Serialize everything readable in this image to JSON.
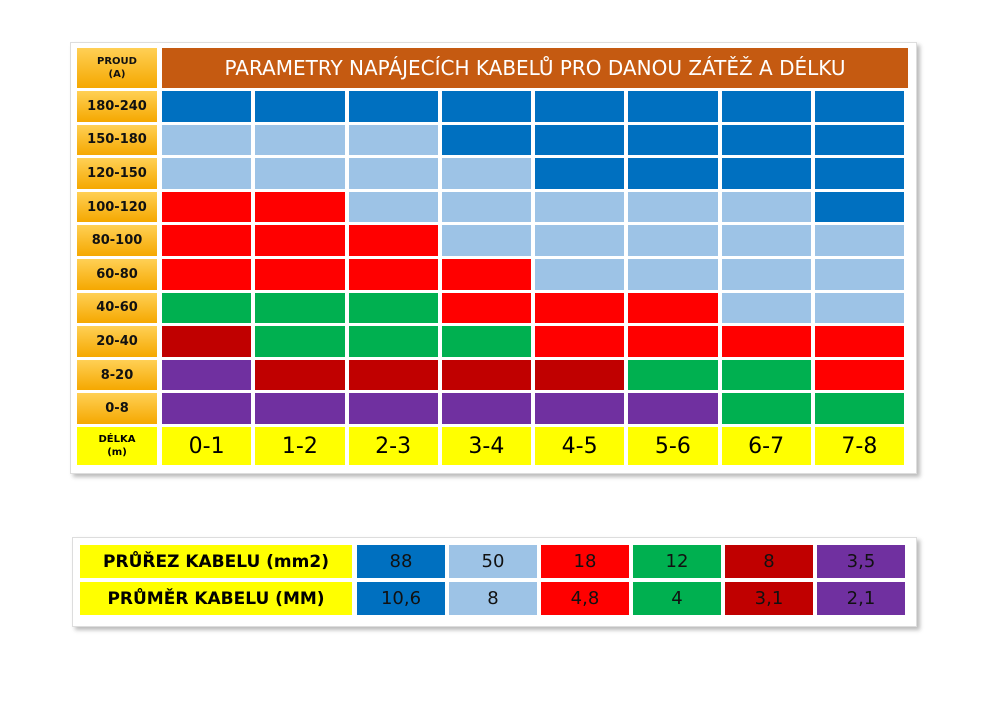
{
  "main_table": {
    "corner": {
      "line1": "PROUD",
      "line2": "(A)"
    },
    "title": "PARAMETRY NAPÁJECÍCH KABELŮ PRO DANOU ZÁTĚŽ A DÉLKU",
    "rows": [
      {
        "label": "180-240",
        "cells": [
          "#0070c0",
          "#0070c0",
          "#0070c0",
          "#0070c0",
          "#0070c0",
          "#0070c0",
          "#0070c0",
          "#0070c0"
        ]
      },
      {
        "label": "150-180",
        "cells": [
          "#9dc3e6",
          "#9dc3e6",
          "#9dc3e6",
          "#0070c0",
          "#0070c0",
          "#0070c0",
          "#0070c0",
          "#0070c0"
        ]
      },
      {
        "label": "120-150",
        "cells": [
          "#9dc3e6",
          "#9dc3e6",
          "#9dc3e6",
          "#9dc3e6",
          "#0070c0",
          "#0070c0",
          "#0070c0",
          "#0070c0"
        ]
      },
      {
        "label": "100-120",
        "cells": [
          "#ff0000",
          "#ff0000",
          "#9dc3e6",
          "#9dc3e6",
          "#9dc3e6",
          "#9dc3e6",
          "#9dc3e6",
          "#0070c0"
        ]
      },
      {
        "label": "80-100",
        "cells": [
          "#ff0000",
          "#ff0000",
          "#ff0000",
          "#9dc3e6",
          "#9dc3e6",
          "#9dc3e6",
          "#9dc3e6",
          "#9dc3e6"
        ]
      },
      {
        "label": "60-80",
        "cells": [
          "#ff0000",
          "#ff0000",
          "#ff0000",
          "#ff0000",
          "#9dc3e6",
          "#9dc3e6",
          "#9dc3e6",
          "#9dc3e6"
        ]
      },
      {
        "label": "40-60",
        "cells": [
          "#00b050",
          "#00b050",
          "#00b050",
          "#ff0000",
          "#ff0000",
          "#ff0000",
          "#9dc3e6",
          "#9dc3e6"
        ]
      },
      {
        "label": "20-40",
        "cells": [
          "#c00000",
          "#00b050",
          "#00b050",
          "#00b050",
          "#ff0000",
          "#ff0000",
          "#ff0000",
          "#ff0000"
        ]
      },
      {
        "label": "8-20",
        "cells": [
          "#7030a0",
          "#c00000",
          "#c00000",
          "#c00000",
          "#c00000",
          "#00b050",
          "#00b050",
          "#ff0000"
        ]
      },
      {
        "label": "0-8",
        "cells": [
          "#7030a0",
          "#7030a0",
          "#7030a0",
          "#7030a0",
          "#7030a0",
          "#7030a0",
          "#00b050",
          "#00b050"
        ]
      }
    ],
    "length_header": {
      "line1": "DÉLKA",
      "line2": "(m)"
    },
    "lengths": [
      "0-1",
      "1-2",
      "2-3",
      "3-4",
      "4-5",
      "5-6",
      "6-7",
      "7-8"
    ]
  },
  "legend_table": {
    "row_labels": [
      "PRŮŘEZ KABELU (mm2)",
      "PRŮMĚR KABELU (MM)"
    ],
    "columns": [
      {
        "color": "#0070c0",
        "cross_section": "88",
        "diameter": "10,6"
      },
      {
        "color": "#9dc3e6",
        "cross_section": "50",
        "diameter": "8"
      },
      {
        "color": "#ff0000",
        "cross_section": "18",
        "diameter": "4,8"
      },
      {
        "color": "#00b050",
        "cross_section": "12",
        "diameter": "4"
      },
      {
        "color": "#c00000",
        "cross_section": "8",
        "diameter": "3,1"
      },
      {
        "color": "#7030a0",
        "cross_section": "3,5",
        "diameter": "2,1"
      }
    ]
  }
}
